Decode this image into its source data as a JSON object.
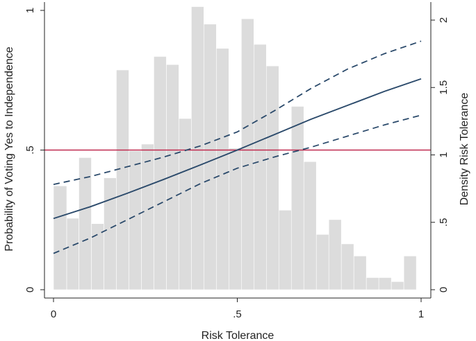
{
  "chart_data": {
    "type": "line",
    "xlabel": "Risk Tolerance",
    "ylabel_left": "Probability of Voting Yes to Independence",
    "ylabel_right": "Density Risk Tolerance",
    "xlim": [
      0,
      1
    ],
    "ylim_left": [
      0,
      1
    ],
    "ylim_right": [
      0,
      2.1
    ],
    "x_ticks": [
      {
        "value": 0,
        "label": "0"
      },
      {
        "value": 0.5,
        "label": ".5"
      },
      {
        "value": 1,
        "label": "1"
      }
    ],
    "y_left_ticks": [
      {
        "value": 0,
        "label": "0"
      },
      {
        "value": 0.5,
        "label": ".5"
      },
      {
        "value": 1,
        "label": "1"
      }
    ],
    "y_right_ticks": [
      {
        "value": 0,
        "label": "0"
      },
      {
        "value": 0.5,
        "label": ".5"
      },
      {
        "value": 1,
        "label": "1"
      },
      {
        "value": 1.5,
        "label": "1.5"
      },
      {
        "value": 2,
        "label": "2"
      }
    ],
    "histogram": {
      "axis": "right",
      "bins": [
        {
          "x0": 0.0,
          "x1": 0.036,
          "density": 0.77
        },
        {
          "x0": 0.036,
          "x1": 0.069,
          "density": 0.53
        },
        {
          "x0": 0.069,
          "x1": 0.103,
          "density": 0.98
        },
        {
          "x0": 0.103,
          "x1": 0.137,
          "density": 0.49
        },
        {
          "x0": 0.137,
          "x1": 0.171,
          "density": 0.83
        },
        {
          "x0": 0.171,
          "x1": 0.205,
          "density": 1.63
        },
        {
          "x0": 0.205,
          "x1": 0.239,
          "density": 1.03
        },
        {
          "x0": 0.239,
          "x1": 0.273,
          "density": 1.08
        },
        {
          "x0": 0.273,
          "x1": 0.307,
          "density": 1.73
        },
        {
          "x0": 0.307,
          "x1": 0.341,
          "density": 1.67
        },
        {
          "x0": 0.341,
          "x1": 0.375,
          "density": 1.27
        },
        {
          "x0": 0.375,
          "x1": 0.409,
          "density": 2.1
        },
        {
          "x0": 0.409,
          "x1": 0.443,
          "density": 1.97
        },
        {
          "x0": 0.443,
          "x1": 0.477,
          "density": 1.79
        },
        {
          "x0": 0.477,
          "x1": 0.511,
          "density": 1.05
        },
        {
          "x0": 0.511,
          "x1": 0.545,
          "density": 2.01
        },
        {
          "x0": 0.545,
          "x1": 0.579,
          "density": 1.82
        },
        {
          "x0": 0.579,
          "x1": 0.613,
          "density": 1.66
        },
        {
          "x0": 0.613,
          "x1": 0.647,
          "density": 0.59
        },
        {
          "x0": 0.647,
          "x1": 0.681,
          "density": 1.36
        },
        {
          "x0": 0.681,
          "x1": 0.715,
          "density": 0.95
        },
        {
          "x0": 0.715,
          "x1": 0.749,
          "density": 0.41
        },
        {
          "x0": 0.749,
          "x1": 0.783,
          "density": 0.52
        },
        {
          "x0": 0.783,
          "x1": 0.817,
          "density": 0.34
        },
        {
          "x0": 0.817,
          "x1": 0.851,
          "density": 0.25
        },
        {
          "x0": 0.851,
          "x1": 0.885,
          "density": 0.09
        },
        {
          "x0": 0.885,
          "x1": 0.919,
          "density": 0.09
        },
        {
          "x0": 0.919,
          "x1": 0.953,
          "density": 0.06
        },
        {
          "x0": 0.953,
          "x1": 0.987,
          "density": 0.25
        }
      ]
    },
    "reference_line": {
      "axis": "left",
      "y": 0.5
    },
    "series": [
      {
        "role": "prediction",
        "x": [
          0,
          0.1,
          0.2,
          0.3,
          0.4,
          0.5,
          0.6,
          0.7,
          0.8,
          0.9,
          1.0
        ],
        "y": [
          0.255,
          0.297,
          0.345,
          0.395,
          0.447,
          0.5,
          0.555,
          0.61,
          0.66,
          0.71,
          0.755
        ]
      },
      {
        "role": "upper-ci",
        "x": [
          0,
          0.1,
          0.2,
          0.3,
          0.4,
          0.5,
          0.6,
          0.7,
          0.8,
          0.9,
          1.0
        ],
        "y": [
          0.377,
          0.405,
          0.44,
          0.475,
          0.515,
          0.565,
          0.64,
          0.72,
          0.79,
          0.845,
          0.89
        ]
      },
      {
        "role": "lower-ci",
        "x": [
          0,
          0.1,
          0.2,
          0.3,
          0.4,
          0.5,
          0.6,
          0.7,
          0.8,
          0.9,
          1.0
        ],
        "y": [
          0.13,
          0.185,
          0.25,
          0.315,
          0.38,
          0.435,
          0.475,
          0.51,
          0.55,
          0.59,
          0.625
        ]
      }
    ],
    "colors": {
      "histogram": "#dcdcdc",
      "prediction": "#2b4a6b",
      "ci": "#2b4a6b",
      "reference": "#c0294e",
      "axis": "#222222"
    },
    "grid": false
  }
}
